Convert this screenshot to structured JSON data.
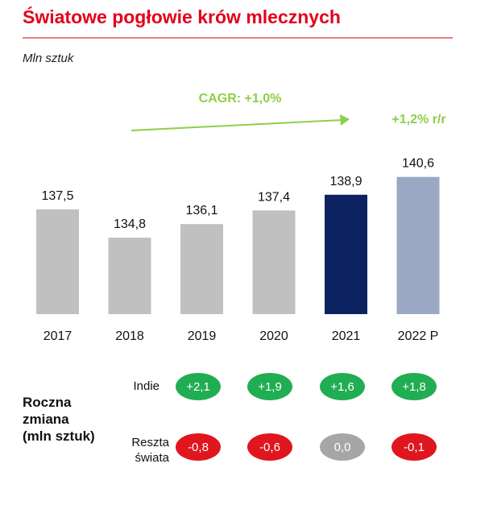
{
  "title": "Światowe pogłowie krów mlecznych",
  "unit": "Mln sztuk",
  "colors": {
    "title": "#e3001b",
    "bar_default": "#c0c0c0",
    "bar_highlight": "#0d2260",
    "bar_forecast": "#9ba8c4",
    "annotation": "#8ccf4a",
    "positive": "#21ad52",
    "negative": "#e0161e",
    "neutral": "#a6a6a6"
  },
  "chart_data": {
    "type": "bar",
    "categories": [
      "2017",
      "2018",
      "2019",
      "2020",
      "2021",
      "2022 P"
    ],
    "values": [
      137.5,
      134.8,
      136.1,
      137.4,
      138.9,
      140.6
    ],
    "value_labels": [
      "137,5",
      "134,8",
      "136,1",
      "137,4",
      "138,9",
      "140,6"
    ],
    "bar_colors": [
      "#c0c0c0",
      "#c0c0c0",
      "#c0c0c0",
      "#c0c0c0",
      "#0d2260",
      "#9ba8c4"
    ],
    "annotations": {
      "cagr": "CAGR: +1,0%",
      "yoy": "+1,2% r/r"
    },
    "grid": false,
    "legend": "none"
  },
  "change_table": {
    "section_label": [
      "Roczna",
      "zmiana",
      "(mln sztuk)"
    ],
    "rows": [
      {
        "label": [
          "Indie"
        ],
        "values": [
          "+2,1",
          "+1,9",
          "+1,6",
          "+1,8"
        ],
        "tones": [
          "positive",
          "positive",
          "positive",
          "positive"
        ]
      },
      {
        "label": [
          "Reszta",
          "świata"
        ],
        "values": [
          "-0,8",
          "-0,6",
          "0,0",
          "-0,1"
        ],
        "tones": [
          "negative",
          "negative",
          "neutral",
          "negative"
        ]
      }
    ]
  }
}
